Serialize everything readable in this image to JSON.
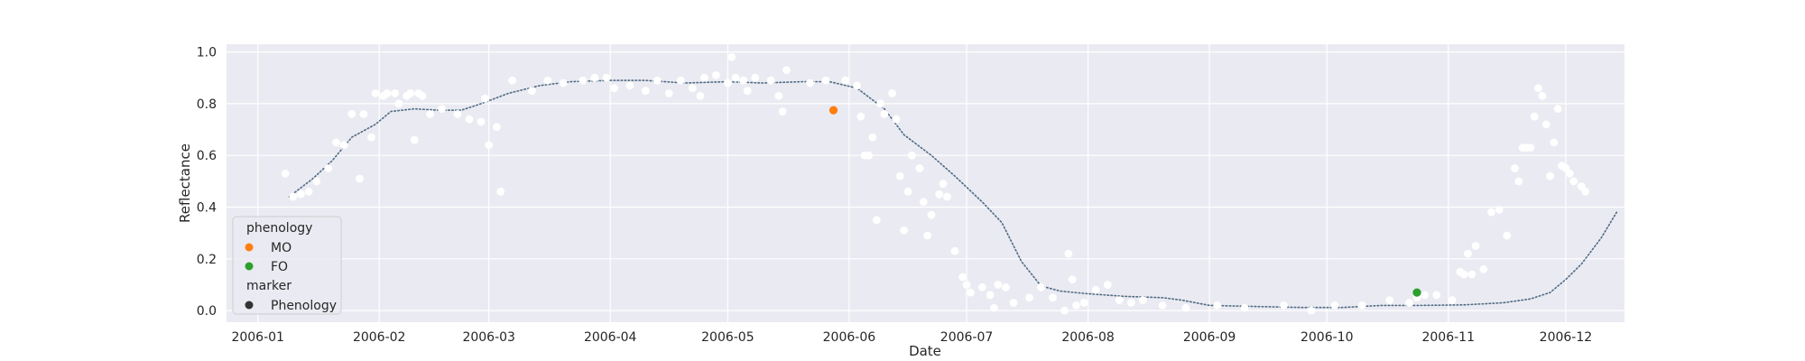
{
  "chart_data": {
    "type": "scatter",
    "title": "",
    "xlabel": "Date",
    "ylabel": "Reflectance",
    "x_domain": [
      "2005-12-24",
      "2006-12-16"
    ],
    "ylim": [
      -0.045,
      1.03
    ],
    "x_ticks": [
      "2006-01-01",
      "2006-02-01",
      "2006-03-01",
      "2006-04-01",
      "2006-05-01",
      "2006-06-01",
      "2006-07-01",
      "2006-08-01",
      "2006-09-01",
      "2006-10-01",
      "2006-11-01",
      "2006-12-01"
    ],
    "x_tick_labels": [
      "2006-01",
      "2006-02",
      "2006-03",
      "2006-04",
      "2006-05",
      "2006-06",
      "2006-07",
      "2006-08",
      "2006-09",
      "2006-10",
      "2006-11",
      "2006-12"
    ],
    "y_ticks": [
      0.0,
      0.2,
      0.4,
      0.6,
      0.8,
      1.0
    ],
    "y_tick_labels": [
      "0.0",
      "0.2",
      "0.4",
      "0.6",
      "0.8",
      "1.0"
    ],
    "grid": true,
    "background": "#eaeaf2",
    "legend": {
      "placement": "lower-left",
      "hue_title": "phenology",
      "style_title": "marker",
      "entries": [
        {
          "label": "MO",
          "color": "#ff7f0e"
        },
        {
          "label": "FO",
          "color": "#2ca02c"
        },
        {
          "label": "Phenology",
          "color": "#333333"
        }
      ]
    },
    "observations": {
      "color": "#ffffff",
      "points": [
        [
          "2006-01-08",
          0.53
        ],
        [
          "2006-01-10",
          0.44
        ],
        [
          "2006-01-12",
          0.45
        ],
        [
          "2006-01-14",
          0.46
        ],
        [
          "2006-01-16",
          0.5
        ],
        [
          "2006-01-19",
          0.55
        ],
        [
          "2006-01-21",
          0.65
        ],
        [
          "2006-01-23",
          0.64
        ],
        [
          "2006-01-25",
          0.76
        ],
        [
          "2006-01-27",
          0.51
        ],
        [
          "2006-01-28",
          0.76
        ],
        [
          "2006-01-30",
          0.67
        ],
        [
          "2006-01-31",
          0.84
        ],
        [
          "2006-02-02",
          0.83
        ],
        [
          "2006-02-03",
          0.84
        ],
        [
          "2006-02-05",
          0.84
        ],
        [
          "2006-02-06",
          0.8
        ],
        [
          "2006-02-08",
          0.83
        ],
        [
          "2006-02-09",
          0.84
        ],
        [
          "2006-02-10",
          0.66
        ],
        [
          "2006-02-11",
          0.84
        ],
        [
          "2006-02-12",
          0.83
        ],
        [
          "2006-02-14",
          0.76
        ],
        [
          "2006-02-17",
          0.78
        ],
        [
          "2006-02-21",
          0.76
        ],
        [
          "2006-02-24",
          0.74
        ],
        [
          "2006-02-27",
          0.73
        ],
        [
          "2006-02-28",
          0.82
        ],
        [
          "2006-03-01",
          0.64
        ],
        [
          "2006-03-03",
          0.71
        ],
        [
          "2006-03-04",
          0.46
        ],
        [
          "2006-03-07",
          0.89
        ],
        [
          "2006-03-12",
          0.85
        ],
        [
          "2006-03-16",
          0.89
        ],
        [
          "2006-03-20",
          0.88
        ],
        [
          "2006-03-25",
          0.89
        ],
        [
          "2006-03-28",
          0.9
        ],
        [
          "2006-03-31",
          0.9
        ],
        [
          "2006-04-02",
          0.86
        ],
        [
          "2006-04-06",
          0.87
        ],
        [
          "2006-04-10",
          0.85
        ],
        [
          "2006-04-13",
          0.89
        ],
        [
          "2006-04-16",
          0.84
        ],
        [
          "2006-04-19",
          0.89
        ],
        [
          "2006-04-22",
          0.86
        ],
        [
          "2006-04-24",
          0.83
        ],
        [
          "2006-04-25",
          0.9
        ],
        [
          "2006-04-28",
          0.91
        ],
        [
          "2006-05-01",
          0.88
        ],
        [
          "2006-05-02",
          0.98
        ],
        [
          "2006-05-03",
          0.9
        ],
        [
          "2006-05-05",
          0.89
        ],
        [
          "2006-05-06",
          0.85
        ],
        [
          "2006-05-08",
          0.9
        ],
        [
          "2006-05-12",
          0.89
        ],
        [
          "2006-05-14",
          0.83
        ],
        [
          "2006-05-15",
          0.77
        ],
        [
          "2006-05-16",
          0.93
        ],
        [
          "2006-05-22",
          0.88
        ],
        [
          "2006-05-26",
          0.89
        ],
        [
          "2006-05-31",
          0.89
        ],
        [
          "2006-06-03",
          0.87
        ],
        [
          "2006-06-04",
          0.75
        ],
        [
          "2006-06-05",
          0.6
        ],
        [
          "2006-06-06",
          0.6
        ],
        [
          "2006-06-07",
          0.67
        ],
        [
          "2006-06-08",
          0.35
        ],
        [
          "2006-06-09",
          0.8
        ],
        [
          "2006-06-10",
          0.76
        ],
        [
          "2006-06-12",
          0.84
        ],
        [
          "2006-06-13",
          0.74
        ],
        [
          "2006-06-14",
          0.52
        ],
        [
          "2006-06-15",
          0.31
        ],
        [
          "2006-06-16",
          0.46
        ],
        [
          "2006-06-17",
          0.6
        ],
        [
          "2006-06-19",
          0.55
        ],
        [
          "2006-06-20",
          0.42
        ],
        [
          "2006-06-21",
          0.29
        ],
        [
          "2006-06-22",
          0.37
        ],
        [
          "2006-06-24",
          0.45
        ],
        [
          "2006-06-25",
          0.49
        ],
        [
          "2006-06-26",
          0.44
        ],
        [
          "2006-06-28",
          0.23
        ],
        [
          "2006-06-30",
          0.13
        ],
        [
          "2006-07-01",
          0.1
        ],
        [
          "2006-07-02",
          0.07
        ],
        [
          "2006-07-05",
          0.09
        ],
        [
          "2006-07-07",
          0.06
        ],
        [
          "2006-07-08",
          0.01
        ],
        [
          "2006-07-09",
          0.1
        ],
        [
          "2006-07-11",
          0.09
        ],
        [
          "2006-07-13",
          0.03
        ],
        [
          "2006-07-17",
          0.05
        ],
        [
          "2006-07-20",
          0.09
        ],
        [
          "2006-07-23",
          0.05
        ],
        [
          "2006-07-26",
          0.0
        ],
        [
          "2006-07-27",
          0.22
        ],
        [
          "2006-07-28",
          0.12
        ],
        [
          "2006-07-29",
          0.02
        ],
        [
          "2006-07-31",
          0.03
        ],
        [
          "2006-08-03",
          0.08
        ],
        [
          "2006-08-06",
          0.1
        ],
        [
          "2006-08-09",
          0.04
        ],
        [
          "2006-08-12",
          0.03
        ],
        [
          "2006-08-15",
          0.04
        ],
        [
          "2006-08-20",
          0.02
        ],
        [
          "2006-08-26",
          0.01
        ],
        [
          "2006-09-03",
          0.02
        ],
        [
          "2006-09-10",
          0.01
        ],
        [
          "2006-09-20",
          0.02
        ],
        [
          "2006-09-27",
          0.0
        ],
        [
          "2006-10-03",
          0.02
        ],
        [
          "2006-10-10",
          0.02
        ],
        [
          "2006-10-17",
          0.04
        ],
        [
          "2006-10-22",
          0.03
        ],
        [
          "2006-10-24",
          0.05
        ],
        [
          "2006-10-26",
          0.06
        ],
        [
          "2006-10-29",
          0.06
        ],
        [
          "2006-11-02",
          0.04
        ],
        [
          "2006-11-04",
          0.15
        ],
        [
          "2006-11-05",
          0.14
        ],
        [
          "2006-11-06",
          0.22
        ],
        [
          "2006-11-07",
          0.14
        ],
        [
          "2006-11-08",
          0.25
        ],
        [
          "2006-11-10",
          0.16
        ],
        [
          "2006-11-12",
          0.38
        ],
        [
          "2006-11-14",
          0.39
        ],
        [
          "2006-11-16",
          0.29
        ],
        [
          "2006-11-18",
          0.55
        ],
        [
          "2006-11-19",
          0.5
        ],
        [
          "2006-11-20",
          0.63
        ],
        [
          "2006-11-21",
          0.63
        ],
        [
          "2006-11-22",
          0.63
        ],
        [
          "2006-11-23",
          0.75
        ],
        [
          "2006-11-24",
          0.86
        ],
        [
          "2006-11-25",
          0.83
        ],
        [
          "2006-11-26",
          0.72
        ],
        [
          "2006-11-27",
          0.52
        ],
        [
          "2006-11-28",
          0.65
        ],
        [
          "2006-11-29",
          0.78
        ],
        [
          "2006-11-30",
          0.56
        ],
        [
          "2006-12-01",
          0.55
        ],
        [
          "2006-12-02",
          0.53
        ],
        [
          "2006-12-03",
          0.5
        ],
        [
          "2006-12-05",
          0.48
        ],
        [
          "2006-12-06",
          0.46
        ]
      ]
    },
    "fitted_curve": {
      "color": "#4f6b82",
      "points": [
        [
          "2006-01-09",
          0.44
        ],
        [
          "2006-01-15",
          0.51
        ],
        [
          "2006-01-20",
          0.58
        ],
        [
          "2006-01-25",
          0.67
        ],
        [
          "2006-01-31",
          0.72
        ],
        [
          "2006-02-04",
          0.77
        ],
        [
          "2006-02-10",
          0.78
        ],
        [
          "2006-02-16",
          0.775
        ],
        [
          "2006-02-22",
          0.775
        ],
        [
          "2006-02-27",
          0.8
        ],
        [
          "2006-03-06",
          0.84
        ],
        [
          "2006-03-14",
          0.87
        ],
        [
          "2006-03-22",
          0.885
        ],
        [
          "2006-04-01",
          0.89
        ],
        [
          "2006-04-10",
          0.89
        ],
        [
          "2006-04-20",
          0.88
        ],
        [
          "2006-05-01",
          0.885
        ],
        [
          "2006-05-10",
          0.88
        ],
        [
          "2006-05-20",
          0.885
        ],
        [
          "2006-05-27",
          0.885
        ],
        [
          "2006-06-03",
          0.86
        ],
        [
          "2006-06-10",
          0.78
        ],
        [
          "2006-06-15",
          0.68
        ],
        [
          "2006-06-22",
          0.6
        ],
        [
          "2006-06-28",
          0.52
        ],
        [
          "2006-07-05",
          0.42
        ],
        [
          "2006-07-10",
          0.34
        ],
        [
          "2006-07-15",
          0.19
        ],
        [
          "2006-07-20",
          0.095
        ],
        [
          "2006-07-25",
          0.075
        ],
        [
          "2006-08-01",
          0.065
        ],
        [
          "2006-08-10",
          0.055
        ],
        [
          "2006-08-20",
          0.05
        ],
        [
          "2006-08-25",
          0.04
        ],
        [
          "2006-09-01",
          0.02
        ],
        [
          "2006-09-15",
          0.015
        ],
        [
          "2006-09-25",
          0.012
        ],
        [
          "2006-10-05",
          0.012
        ],
        [
          "2006-10-15",
          0.02
        ],
        [
          "2006-10-25",
          0.02
        ],
        [
          "2006-11-05",
          0.022
        ],
        [
          "2006-11-15",
          0.03
        ],
        [
          "2006-11-22",
          0.045
        ],
        [
          "2006-11-27",
          0.07
        ],
        [
          "2006-12-01",
          0.12
        ],
        [
          "2006-12-05",
          0.18
        ],
        [
          "2006-12-10",
          0.28
        ],
        [
          "2006-12-14",
          0.38
        ]
      ]
    },
    "phenology_points": [
      {
        "label": "MO",
        "x": "2006-05-28",
        "y": 0.775,
        "color": "#ff7f0e"
      },
      {
        "label": "FO",
        "x": "2006-10-24",
        "y": 0.07,
        "color": "#2ca02c"
      }
    ]
  }
}
